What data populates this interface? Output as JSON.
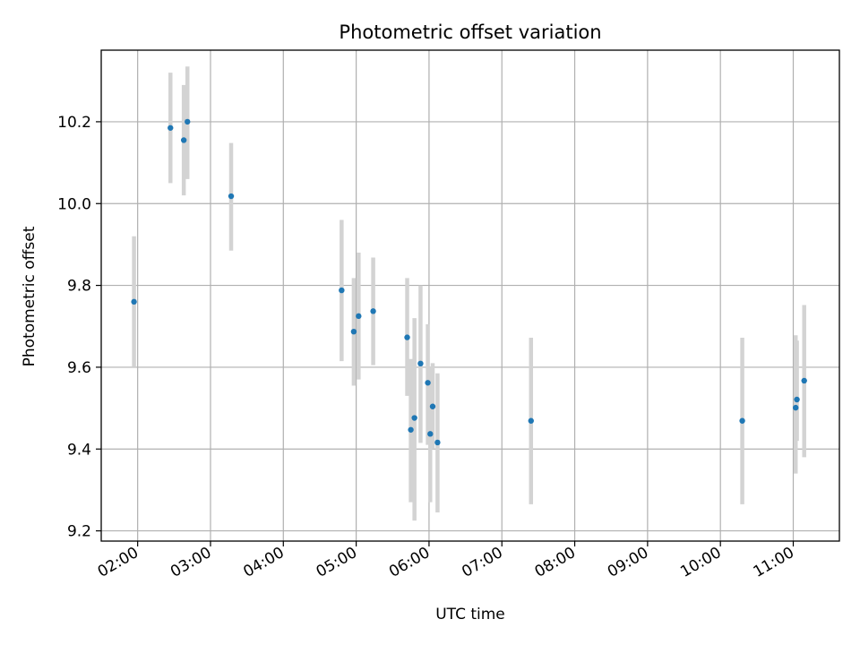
{
  "chart_data": {
    "type": "scatter",
    "title": "Photometric offset variation",
    "xlabel": "UTC time",
    "ylabel": "Photometric offset",
    "x_type": "time",
    "x_ticks": [
      "02:00",
      "03:00",
      "04:00",
      "05:00",
      "06:00",
      "07:00",
      "08:00",
      "09:00",
      "10:00",
      "11:00"
    ],
    "y_ticks": [
      "9.2",
      "9.4",
      "9.6",
      "9.8",
      "10.0",
      "10.2"
    ],
    "xlim": [
      "01:30",
      "11:38"
    ],
    "ylim": [
      9.175,
      10.375
    ],
    "grid": true,
    "colors": {
      "point": "#1f77b4",
      "errorbar": "#d3d3d3",
      "grid": "#b0b0b0"
    },
    "series": [
      {
        "x": [
          "01:57",
          "02:27",
          "02:38",
          "02:41",
          "03:17",
          "04:48",
          "04:58",
          "05:02",
          "05:14",
          "05:42",
          "05:45",
          "05:48",
          "05:53",
          "05:59",
          "06:01",
          "06:03",
          "06:07",
          "07:24",
          "10:18",
          "11:02",
          "11:03",
          "11:09"
        ],
        "y": [
          9.76,
          10.185,
          10.155,
          10.2,
          10.018,
          9.788,
          9.687,
          9.725,
          9.737,
          9.673,
          9.447,
          9.476,
          9.609,
          9.562,
          9.437,
          9.504,
          9.416,
          9.469,
          9.469,
          9.501,
          9.521,
          9.567
        ],
        "yerr_low": [
          9.6,
          10.05,
          10.02,
          10.06,
          9.885,
          9.615,
          9.555,
          9.57,
          9.605,
          9.53,
          9.27,
          9.225,
          9.415,
          9.41,
          9.27,
          9.4,
          9.245,
          9.265,
          9.265,
          9.34,
          9.42,
          9.38
        ],
        "yerr_high": [
          9.92,
          10.32,
          10.29,
          10.335,
          10.148,
          9.96,
          9.818,
          9.88,
          9.868,
          9.818,
          9.62,
          9.72,
          9.8,
          9.705,
          9.6,
          9.61,
          9.585,
          9.672,
          9.672,
          9.678,
          9.665,
          9.752
        ]
      }
    ]
  }
}
